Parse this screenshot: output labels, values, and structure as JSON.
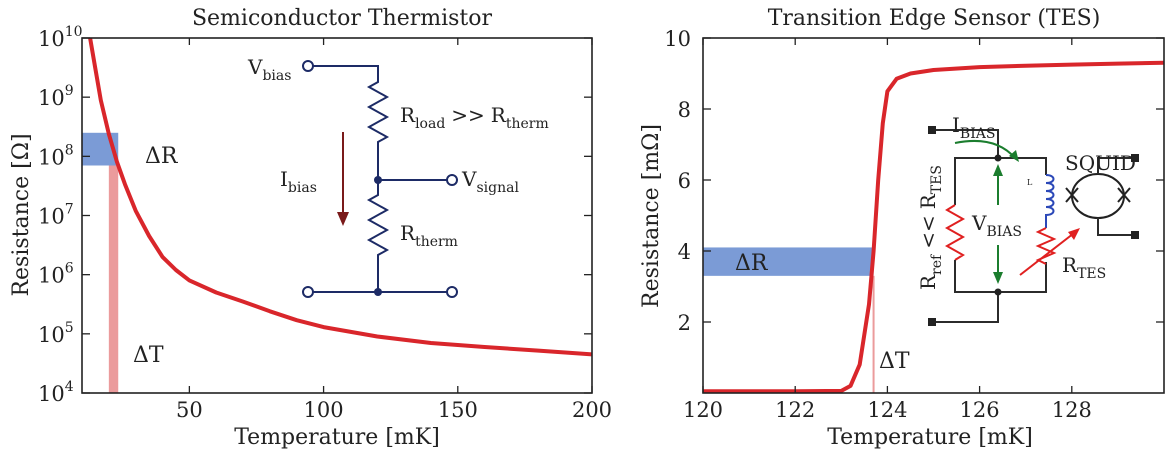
{
  "chart_data": [
    {
      "type": "line",
      "title": "Semiconductor Thermistor",
      "xlabel": "Temperature [mK]",
      "ylabel": "Resistance [Ω]",
      "xlim": [
        10,
        200
      ],
      "ylim": [
        10000,
        10000000000
      ],
      "yscale": "log",
      "x_ticks": [
        50,
        100,
        150,
        200
      ],
      "y_tick_labels": [
        {
          "base": "10",
          "exp": "4"
        },
        {
          "base": "10",
          "exp": "5"
        },
        {
          "base": "10",
          "exp": "6"
        },
        {
          "base": "10",
          "exp": "7"
        },
        {
          "base": "10",
          "exp": "8"
        },
        {
          "base": "10",
          "exp": "9"
        },
        {
          "base": "10",
          "exp": "10"
        }
      ],
      "series": [
        {
          "x": [
            13,
            15,
            17,
            20,
            23,
            26,
            30,
            35,
            40,
            45,
            50,
            60,
            70,
            80,
            90,
            100,
            120,
            140,
            160,
            180,
            200
          ],
          "y": [
            12600000000.0,
            3000000000.0,
            890000000.0,
            240000000.0,
            81000000.0,
            34000000.0,
            12000000.0,
            4500000.0,
            2000000.0,
            1200000.0,
            800000.0,
            500000.0,
            350000.0,
            240000.0,
            170000.0,
            130000.0,
            90000.0,
            70000.0,
            60000.0,
            52000.0,
            45000.0
          ],
          "color": "#d9262b"
        }
      ],
      "bands": {
        "delta_r_label": "ΔR",
        "delta_r_range": [
          70000000.0,
          250000000.0
        ],
        "delta_t_label": "ΔT",
        "delta_t_range": [
          20,
          23.5
        ],
        "delta_r_color": "#7b9bd6",
        "delta_t_color": "#eb9b9c"
      },
      "circuit": {
        "v_bias": {
          "main": "V",
          "sub": "bias"
        },
        "r_load": {
          "main": "R",
          "sub": "load",
          "rel": ">>",
          "main2": "R",
          "sub2": "therm"
        },
        "i_bias": {
          "main": "I",
          "sub": "bias"
        },
        "v_signal": {
          "main": "V",
          "sub": "signal"
        },
        "r_therm": {
          "main": "R",
          "sub": "therm"
        }
      }
    },
    {
      "type": "line",
      "title": "Transition Edge Sensor (TES)",
      "xlabel": "Temperature [mK]",
      "ylabel": "Resistance [mΩ]",
      "xlim": [
        120,
        130
      ],
      "ylim": [
        0,
        10
      ],
      "x_ticks": [
        120,
        122,
        124,
        126,
        128
      ],
      "y_ticks": [
        2,
        4,
        6,
        8,
        10
      ],
      "series": [
        {
          "x": [
            120,
            122,
            123,
            123.2,
            123.4,
            123.6,
            123.7,
            123.8,
            123.9,
            124.0,
            124.2,
            124.5,
            125,
            126,
            127,
            128,
            129,
            130
          ],
          "y": [
            0.05,
            0.05,
            0.06,
            0.2,
            0.8,
            2.5,
            4.0,
            6.0,
            7.6,
            8.5,
            8.85,
            9.0,
            9.1,
            9.18,
            9.22,
            9.25,
            9.28,
            9.3
          ],
          "color": "#d9262b"
        }
      ],
      "bands": {
        "delta_r_label": "ΔR",
        "delta_r_range": [
          3.3,
          4.1
        ],
        "delta_t_label": "ΔT",
        "delta_t_x": 123.7,
        "delta_r_color": "#7b9bd6",
        "delta_t_color": "#eb9b9c"
      },
      "circuit": {
        "i_bias": {
          "main": "I",
          "sub": "BIAS"
        },
        "squid": "SQUID",
        "v_bias": {
          "main": "V",
          "sub": "BIAS"
        },
        "r_tes": {
          "main": "R",
          "sub": "TES"
        },
        "r_ref": {
          "main": "R",
          "sub": "ref",
          "rel": "<<",
          "main2": "R",
          "sub2": "TES"
        },
        "l_label": "L"
      }
    }
  ]
}
